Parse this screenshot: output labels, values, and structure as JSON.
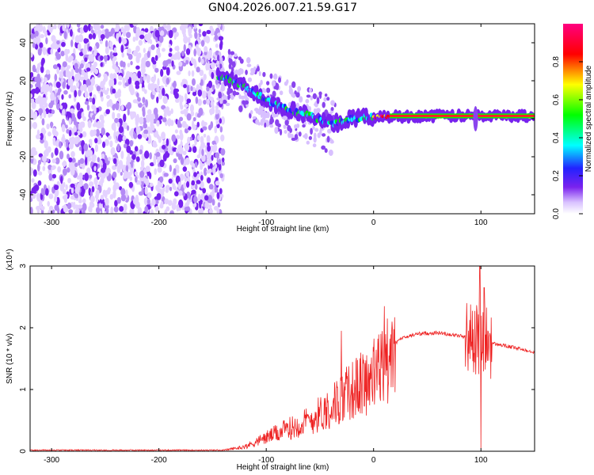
{
  "figure_title": "GN04.2026.007.21.59.G17",
  "chart_data": [
    {
      "type": "heatmap",
      "xlabel": "Height of straight line (km)",
      "ylabel": "Frequency (Hz)",
      "xlim": [
        -320,
        150
      ],
      "ylim": [
        -50,
        50
      ],
      "xticks": [
        -300,
        -200,
        -100,
        0,
        100
      ],
      "yticks": [
        -40,
        -20,
        0,
        20,
        40
      ],
      "colorbar": {
        "label": "Normalized spectral amplitude",
        "range": [
          0,
          1
        ],
        "ticks": [
          "0.0",
          "0.2",
          "0.4",
          "0.6",
          "0.8"
        ],
        "colormap": [
          "#ffffff",
          "#d9c2ff",
          "#7a22ee",
          "#2222ff",
          "#00ffff",
          "#00ff00",
          "#ffff00",
          "#ff0000",
          "#ff0080"
        ]
      },
      "noise_region_x": [
        -320,
        -140
      ],
      "ridge": [
        {
          "x": -140,
          "y": 22
        },
        {
          "x": -120,
          "y": 17
        },
        {
          "x": -100,
          "y": 10
        },
        {
          "x": -80,
          "y": 5
        },
        {
          "x": -60,
          "y": 2
        },
        {
          "x": -40,
          "y": -3
        },
        {
          "x": -20,
          "y": 0
        },
        {
          "x": 0,
          "y": 1
        },
        {
          "x": 50,
          "y": 1.5
        },
        {
          "x": 100,
          "y": 1.5
        },
        {
          "x": 150,
          "y": 1.5
        }
      ]
    },
    {
      "type": "line",
      "xlabel": "Height of straight line (km)",
      "ylabel": "SNR (10 * v/v)",
      "scale_label": "(x10⁴)",
      "xlim": [
        -320,
        150
      ],
      "ylim": [
        0,
        3
      ],
      "xticks": [
        -300,
        -200,
        -100,
        0,
        100
      ],
      "yticks": [
        0,
        1,
        2,
        3
      ],
      "series": [
        {
          "color": "#ee2222",
          "envelope": [
            {
              "x": -320,
              "y": 0.02
            },
            {
              "x": -140,
              "y": 0.02
            },
            {
              "x": -120,
              "y": 0.08
            },
            {
              "x": -100,
              "y": 0.25
            },
            {
              "x": -80,
              "y": 0.4
            },
            {
              "x": -60,
              "y": 0.55
            },
            {
              "x": -40,
              "y": 0.8
            },
            {
              "x": -20,
              "y": 1.1
            },
            {
              "x": 0,
              "y": 1.35
            },
            {
              "x": 10,
              "y": 1.6
            },
            {
              "x": 25,
              "y": 1.82
            },
            {
              "x": 40,
              "y": 1.9
            },
            {
              "x": 60,
              "y": 1.92
            },
            {
              "x": 80,
              "y": 1.87
            },
            {
              "x": 95,
              "y": 1.83
            },
            {
              "x": 110,
              "y": 1.75
            },
            {
              "x": 130,
              "y": 1.68
            },
            {
              "x": 150,
              "y": 1.61
            }
          ],
          "spikes": [
            {
              "x": -30,
              "y": 1.95
            },
            {
              "x": 10,
              "y": 2.35
            },
            {
              "x": 99,
              "y": 3.05
            },
            {
              "x": 100,
              "y": 0.05
            },
            {
              "x": 103,
              "y": 2.65
            }
          ]
        }
      ]
    }
  ]
}
